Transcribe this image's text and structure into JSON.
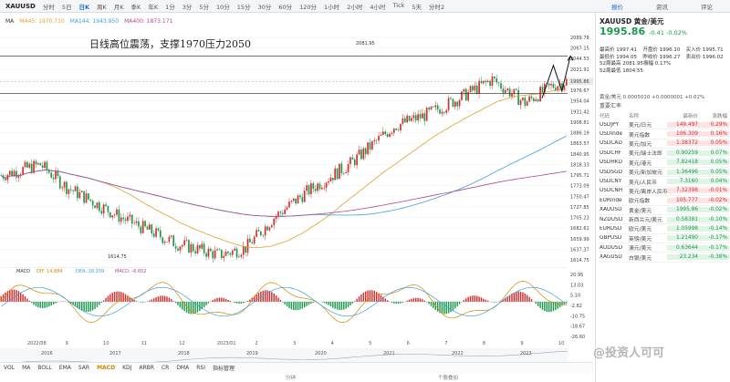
{
  "toolbar": {
    "symbol": "XAUUSD",
    "timeframes": [
      "分时",
      "5日",
      "日K",
      "周K",
      "月K",
      "季K",
      "年K",
      "1分",
      "3分",
      "5分",
      "10分",
      "15分",
      "30分",
      "60分",
      "120分",
      "1小时",
      "2小时",
      "4小时",
      "Tick",
      "5天",
      "分时2"
    ],
    "active_timeframe": "日K",
    "right_tabs": [
      "报价",
      "资讯",
      "评论"
    ]
  },
  "ma_labels": {
    "ma": "MA",
    "ma45": "MA45: 1970.710",
    "ma144": "MA144: 1943.950",
    "ma400": "MA400: 1873.171"
  },
  "annotation": "日线高位震荡，支撑1970压力2050",
  "price_axis": [
    "2089.78",
    "2067.15",
    "2044.53",
    "2021.91",
    "1999.29",
    "1995.86",
    "1976.67",
    "1954.04",
    "1931.42",
    "1908.81",
    "1886.19",
    "1863.57",
    "1840.95",
    "1818.33",
    "1795.71",
    "1773.09",
    "1750.47",
    "1727.85",
    "1705.23",
    "1682.61",
    "1659.99",
    "1637.37",
    "1614.75"
  ],
  "chart_labels": {
    "high": "2081.95",
    "low": "1614.75",
    "last_price": "1995.86",
    "ref_price": "1976.67"
  },
  "macd": {
    "label": "MACD",
    "dif": "DIF: 14.884",
    "dea": "DEA: 18.209",
    "macd": "MACD: -6.652",
    "axis": [
      "20.95",
      "13.03",
      "5.10",
      "-2.82",
      "-10.75",
      "-18.67",
      "-26.60"
    ]
  },
  "x_axis_top": [
    "2022/08",
    "9",
    "10",
    "11",
    "12",
    "2023/01",
    "2",
    "3",
    "4",
    "5",
    "6",
    "7",
    "8",
    "9",
    "10"
  ],
  "x_axis_bottom": [
    "2016",
    "2017",
    "2018",
    "2019",
    "2020",
    "2021",
    "2022",
    "2023"
  ],
  "indicators": [
    "VOL",
    "MA",
    "BOLL",
    "EMA",
    "SAR",
    "MACD",
    "KDJ",
    "ARBR",
    "CR",
    "DMA",
    "RSI",
    "指标管理"
  ],
  "active_indicator": "MACD",
  "footer_left": "分钟",
  "footer_right": "个股叠加",
  "side": {
    "symbol_line": "XAUUSD  黄金/美元",
    "price": "1995.86",
    "change": "-0.41  -0.02%",
    "stats": [
      [
        "最高价 1997.41",
        "开盘价 1996.10",
        "买入价 1995.71"
      ],
      [
        "最低价 1994.05",
        "昨收价 1996.27",
        "卖出价 1996.02"
      ],
      [
        "52周最高 2081.95",
        "振幅 0.17%",
        ""
      ],
      [
        "52周最低 1804.55",
        "",
        ""
      ]
    ],
    "index_line": "黄金/美元  0.0005010  +0.0000001  +0.02%",
    "section_title": "重要汇率",
    "fx_header": [
      "代码",
      "名称",
      "最新价",
      "涨跌幅"
    ],
    "fx_rows": [
      {
        "code": "USDJPY",
        "name": "美元/日元",
        "price": "149.497",
        "pct": "0.29%",
        "dir": "up"
      },
      {
        "code": "USDInde",
        "name": "美元指数",
        "price": "106.309",
        "pct": "0.16%",
        "dir": "up"
      },
      {
        "code": "USDCAD",
        "name": "美元/加元",
        "price": "1.38372",
        "pct": "0.05%",
        "dir": "up"
      },
      {
        "code": "USDCHF",
        "name": "美元/瑞士法郎",
        "price": "0.90259",
        "pct": "0.07%",
        "dir": "dn"
      },
      {
        "code": "USDHKD",
        "name": "美元/港元",
        "price": "7.82418",
        "pct": "0.05%",
        "dir": "dn"
      },
      {
        "code": "USDSGD",
        "name": "美元/新加坡元",
        "price": "1.36496",
        "pct": "0.05%",
        "dir": "dn"
      },
      {
        "code": "USDCNY",
        "name": "美元/人民币",
        "price": "7.3160",
        "pct": "0.04%",
        "dir": "dn"
      },
      {
        "code": "USDCNH",
        "name": "美元/离岸人民币",
        "price": "7.32398",
        "pct": "-0.01%",
        "dir": "up"
      },
      {
        "code": "EURInde",
        "name": "欧元指数",
        "price": "105.777",
        "pct": "-0.02%",
        "dir": "up"
      },
      {
        "code": "XAUUSD",
        "name": "黄金/美元",
        "price": "1995.86",
        "pct": "-0.02%",
        "dir": "dn"
      },
      {
        "code": "NZDUSD",
        "name": "新西兰元/美元",
        "price": "0.58381",
        "pct": "-0.10%",
        "dir": "dn"
      },
      {
        "code": "EURUSD",
        "name": "欧元/美元",
        "price": "1.05998",
        "pct": "-0.14%",
        "dir": "dn"
      },
      {
        "code": "GBPUSD",
        "name": "英镑/美元",
        "price": "1.21490",
        "pct": "-0.17%",
        "dir": "dn"
      },
      {
        "code": "AUDUSD",
        "name": "澳元/美元",
        "price": "0.63644",
        "pct": "-0.17%",
        "dir": "dn"
      },
      {
        "code": "XAGUSD",
        "name": "白银/美元",
        "price": "23.234",
        "pct": "-0.38%",
        "dir": "dn"
      }
    ]
  },
  "watermark": "@投资人可可",
  "colors": {
    "up": "#d62c2c",
    "down": "#1a9a4a",
    "ma45": "#e0a030",
    "ma144": "#3aa0d8",
    "ma400": "#b04a8c",
    "accent": "#1e6ad6"
  }
}
